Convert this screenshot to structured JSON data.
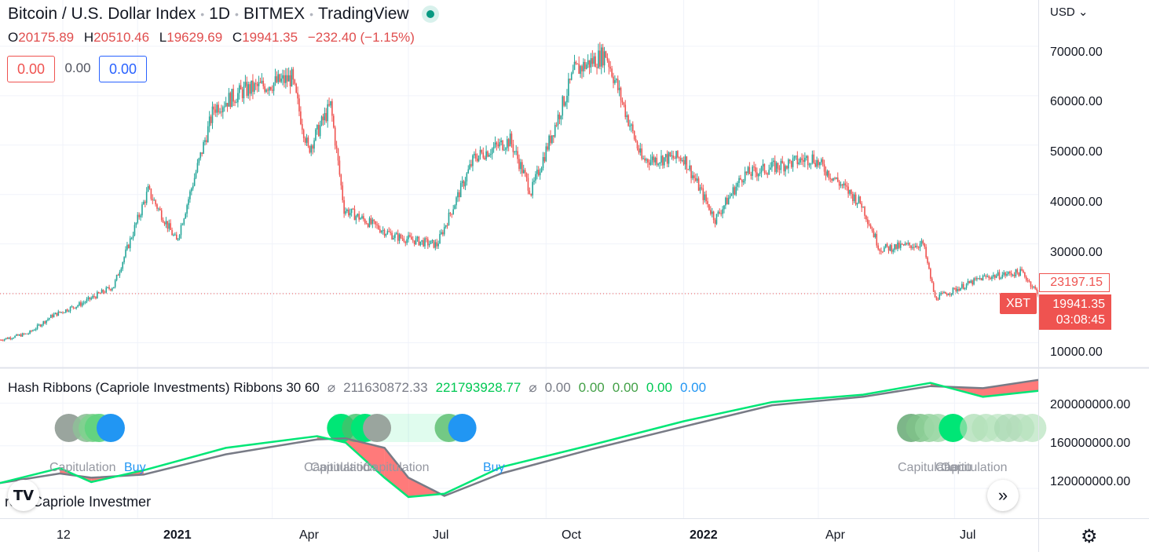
{
  "header": {
    "symbol": "Bitcoin / U.S. Dollar Index",
    "interval": "1D",
    "exchange": "BITMEX",
    "brand": "TradingView"
  },
  "ohlc": {
    "o_label": "O",
    "o": "20175.89",
    "h_label": "H",
    "h": "20510.46",
    "l_label": "L",
    "l": "19629.69",
    "c_label": "C",
    "c": "19941.35",
    "change": "−232.40 (−1.15%)"
  },
  "boxes": {
    "sell": "0.00",
    "mid": "0.00",
    "buy": "0.00"
  },
  "indicator": {
    "name": "Hash Ribbons (Capriole Investments) Ribbons 30 60",
    "v1": "211630872.33",
    "v2": "221793928.77",
    "v3": "0.00",
    "v4": "0.00",
    "v5": "0.00",
    "v6": "0.00",
    "v7": "0.00",
    "source": "rce: Capriole Investmer"
  },
  "price_axis": {
    "currency": "USD",
    "labels": [
      "70000.00",
      "60000.00",
      "50000.00",
      "40000.00",
      "30000.00",
      "10000.00"
    ],
    "alert_price": "23197.15",
    "last_price": "19941.35",
    "countdown": "03:08:45",
    "symbol_tag": "XBT"
  },
  "indicator_axis": {
    "labels": [
      "200000000.00",
      "160000000.00",
      "120000000.00"
    ]
  },
  "time_axis": [
    "12",
    "2021",
    "Apr",
    "Jul",
    "Oct",
    "2022",
    "Apr",
    "Jul"
  ],
  "signals": {
    "capitulation": "Capitulation",
    "buy": "Buy",
    "overlap_1": "Capitulation",
    "overlap_2": "Capitulation",
    "overlap_3": "Capitulation",
    "late_1": "Capitulation",
    "late_2": "Capitu",
    "late_3": "Capitulation",
    "buy_2": "Buy"
  },
  "colors": {
    "up": "#26a69a",
    "down": "#ef5350",
    "fast_ribbon": "#00e676",
    "slow_ribbon": "#787b86",
    "buy": "#2196f3",
    "capitulation_fill": "#ff6b6b"
  },
  "chart_data": {
    "type": "candlestick",
    "x_range": [
      "2020-10-01",
      "2022-08-26"
    ],
    "price_series": [
      {
        "date": "2020-10-01",
        "close": 10600
      },
      {
        "date": "2020-10-20",
        "close": 11900
      },
      {
        "date": "2020-11-05",
        "close": 15500
      },
      {
        "date": "2020-11-25",
        "close": 18000
      },
      {
        "date": "2020-12-16",
        "close": 21500
      },
      {
        "date": "2021-01-08",
        "close": 40800
      },
      {
        "date": "2021-01-27",
        "close": 30500
      },
      {
        "date": "2021-02-21",
        "close": 57500
      },
      {
        "date": "2021-03-13",
        "close": 61000
      },
      {
        "date": "2021-04-14",
        "close": 63500
      },
      {
        "date": "2021-04-25",
        "close": 49000
      },
      {
        "date": "2021-05-10",
        "close": 58000
      },
      {
        "date": "2021-05-19",
        "close": 37000
      },
      {
        "date": "2021-06-22",
        "close": 31500
      },
      {
        "date": "2021-07-20",
        "close": 29800
      },
      {
        "date": "2021-08-14",
        "close": 47500
      },
      {
        "date": "2021-09-07",
        "close": 51000
      },
      {
        "date": "2021-09-21",
        "close": 40500
      },
      {
        "date": "2021-10-20",
        "close": 65000
      },
      {
        "date": "2021-11-10",
        "close": 68500
      },
      {
        "date": "2021-12-04",
        "close": 47000
      },
      {
        "date": "2022-01-01",
        "close": 47500
      },
      {
        "date": "2022-01-22",
        "close": 35000
      },
      {
        "date": "2022-02-10",
        "close": 44000
      },
      {
        "date": "2022-03-28",
        "close": 47500
      },
      {
        "date": "2022-04-30",
        "close": 38000
      },
      {
        "date": "2022-05-12",
        "close": 29000
      },
      {
        "date": "2022-06-10",
        "close": 30000
      },
      {
        "date": "2022-06-18",
        "close": 19000
      },
      {
        "date": "2022-07-20",
        "close": 23200
      },
      {
        "date": "2022-08-15",
        "close": 24300
      },
      {
        "date": "2022-08-26",
        "close": 19941.35
      }
    ],
    "hash_ribbon_fast": [
      {
        "date": "2020-10-01",
        "value": 125000000
      },
      {
        "date": "2020-11-10",
        "value": 139000000
      },
      {
        "date": "2020-12-01",
        "value": 126000000
      },
      {
        "date": "2021-01-05",
        "value": 137000000
      },
      {
        "date": "2021-03-01",
        "value": 158000000
      },
      {
        "date": "2021-05-01",
        "value": 169000000
      },
      {
        "date": "2021-05-20",
        "value": 163000000
      },
      {
        "date": "2021-06-15",
        "value": 130000000
      },
      {
        "date": "2021-07-01",
        "value": 112000000
      },
      {
        "date": "2021-07-25",
        "value": 115000000
      },
      {
        "date": "2021-09-01",
        "value": 140000000
      },
      {
        "date": "2021-11-01",
        "value": 161000000
      },
      {
        "date": "2022-01-01",
        "value": 183000000
      },
      {
        "date": "2022-03-01",
        "value": 201000000
      },
      {
        "date": "2022-05-01",
        "value": 208000000
      },
      {
        "date": "2022-06-15",
        "value": 219000000
      },
      {
        "date": "2022-07-20",
        "value": 206000000
      },
      {
        "date": "2022-08-26",
        "value": 211600000
      }
    ],
    "hash_ribbon_slow": [
      {
        "date": "2020-10-01",
        "value": 125000000
      },
      {
        "date": "2020-11-10",
        "value": 134000000
      },
      {
        "date": "2020-12-01",
        "value": 130000000
      },
      {
        "date": "2021-01-05",
        "value": 133000000
      },
      {
        "date": "2021-03-01",
        "value": 152000000
      },
      {
        "date": "2021-05-01",
        "value": 166000000
      },
      {
        "date": "2021-05-20",
        "value": 167000000
      },
      {
        "date": "2021-06-15",
        "value": 158000000
      },
      {
        "date": "2021-07-01",
        "value": 130000000
      },
      {
        "date": "2021-07-25",
        "value": 113000000
      },
      {
        "date": "2021-09-01",
        "value": 134000000
      },
      {
        "date": "2021-11-01",
        "value": 157000000
      },
      {
        "date": "2022-01-01",
        "value": 178000000
      },
      {
        "date": "2022-03-01",
        "value": 198000000
      },
      {
        "date": "2022-05-01",
        "value": 206000000
      },
      {
        "date": "2022-06-15",
        "value": 216000000
      },
      {
        "date": "2022-07-20",
        "value": 214000000
      },
      {
        "date": "2022-08-26",
        "value": 221800000
      }
    ],
    "price_ylim": [
      5000,
      73000
    ],
    "ribbon_ylim": [
      92000000,
      232000000
    ],
    "signal_markers": [
      {
        "date": "2020-12-01",
        "kind": "capitulation"
      },
      {
        "date": "2020-12-14",
        "kind": "buy"
      },
      {
        "date": "2021-05-17",
        "kind": "capitulation"
      },
      {
        "date": "2021-05-25",
        "kind": "capitulation"
      },
      {
        "date": "2021-06-10",
        "kind": "capitulation"
      },
      {
        "date": "2021-08-06",
        "kind": "buy"
      },
      {
        "date": "2022-06-05",
        "kind": "capitulation"
      },
      {
        "date": "2022-06-20",
        "kind": "capitulation"
      },
      {
        "date": "2022-07-05",
        "kind": "capitulation"
      }
    ]
  }
}
